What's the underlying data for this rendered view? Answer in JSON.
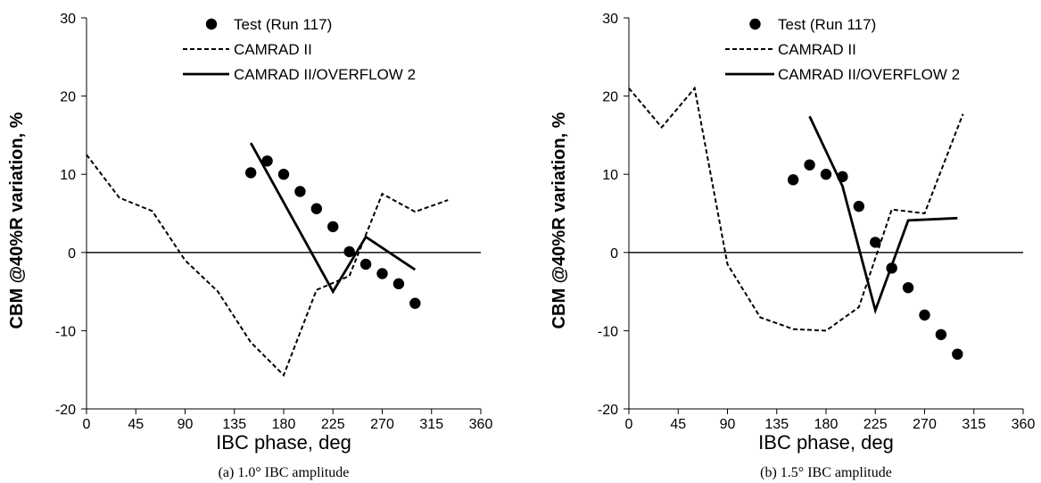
{
  "chart_data": [
    {
      "type": "line",
      "caption": "(a)  1.0° IBC amplitude",
      "xlabel": "IBC phase, deg",
      "ylabel": "CBM @40%R variation, %",
      "xlim": [
        0,
        360
      ],
      "ylim": [
        -20,
        30
      ],
      "xticks": [
        0,
        45,
        90,
        135,
        180,
        225,
        270,
        315,
        360
      ],
      "yticks": [
        -20,
        -10,
        0,
        10,
        20,
        30
      ],
      "zero_line": true,
      "legend_position": "top",
      "series": [
        {
          "name": "Test (Run 117)",
          "style": "markers",
          "x": [
            150,
            165,
            180,
            195,
            210,
            225,
            240,
            255,
            270,
            285,
            300
          ],
          "y": [
            10.2,
            11.7,
            10.0,
            7.8,
            5.6,
            3.3,
            0.1,
            -1.5,
            -2.7,
            -4.0,
            -6.5
          ]
        },
        {
          "name": "CAMRAD II",
          "style": "dashed",
          "x": [
            0,
            30,
            60,
            90,
            120,
            150,
            180,
            210,
            240,
            270,
            300,
            330
          ],
          "y": [
            12.5,
            7.0,
            5.3,
            -1.0,
            -5.0,
            -11.5,
            -15.7,
            -4.8,
            -3.0,
            7.5,
            5.2,
            6.7
          ]
        },
        {
          "name": "CAMRAD II/OVERFLOW 2",
          "style": "solid",
          "x": [
            150,
            225,
            255,
            300
          ],
          "y": [
            14.0,
            -5.0,
            2.0,
            -2.2
          ]
        }
      ]
    },
    {
      "type": "line",
      "caption": "(b)  1.5° IBC amplitude",
      "xlabel": "IBC phase, deg",
      "ylabel": "CBM @40%R variation, %",
      "xlim": [
        0,
        360
      ],
      "ylim": [
        -20,
        30
      ],
      "xticks": [
        0,
        45,
        90,
        135,
        180,
        225,
        270,
        315,
        360
      ],
      "yticks": [
        -20,
        -10,
        0,
        10,
        20,
        30
      ],
      "zero_line": true,
      "legend_position": "top",
      "series": [
        {
          "name": "Test (Run 117)",
          "style": "markers",
          "x": [
            150,
            165,
            180,
            195,
            210,
            225,
            240,
            255,
            270,
            285,
            300
          ],
          "y": [
            9.3,
            11.2,
            10.0,
            9.7,
            5.9,
            1.3,
            -2.0,
            -4.5,
            -8.0,
            -10.5,
            -13.0
          ]
        },
        {
          "name": "CAMRAD II",
          "style": "dashed",
          "x": [
            0,
            30,
            60,
            90,
            120,
            150,
            180,
            210,
            240,
            270,
            305
          ],
          "y": [
            21.0,
            16.0,
            21.0,
            -1.5,
            -8.3,
            -9.8,
            -10.0,
            -7.0,
            5.5,
            5.0,
            17.7
          ]
        },
        {
          "name": "CAMRAD II/OVERFLOW 2",
          "style": "solid",
          "x": [
            165,
            195,
            225,
            255,
            300
          ],
          "y": [
            17.4,
            8.5,
            -7.4,
            4.1,
            4.4
          ]
        }
      ]
    }
  ]
}
